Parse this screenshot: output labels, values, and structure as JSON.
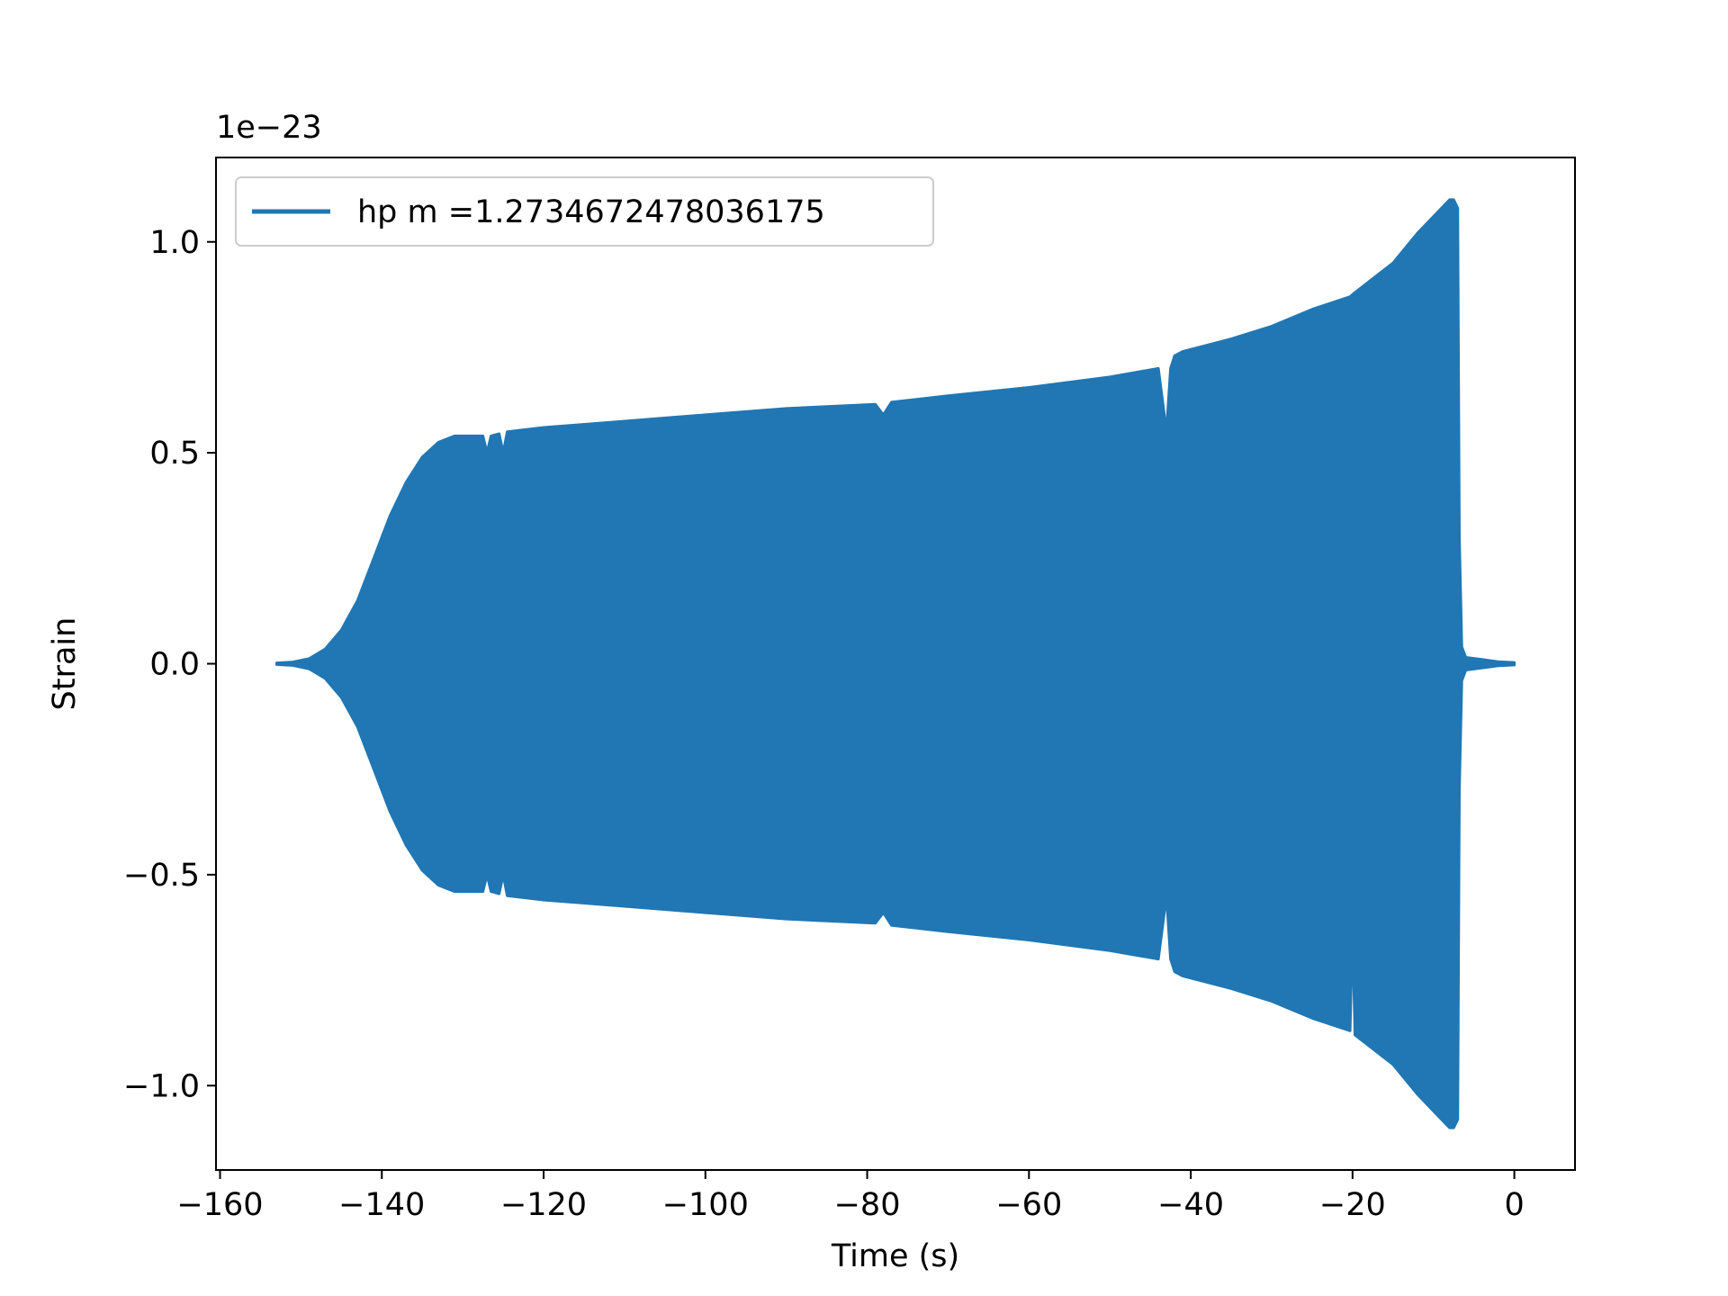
{
  "chart_data": {
    "type": "line",
    "title": "",
    "xlabel": "Time (s)",
    "ylabel": "Strain",
    "offset_text": "1e−23",
    "xlim": [
      -160.5,
      7.5
    ],
    "ylim": [
      -1.2,
      1.2
    ],
    "x_ticks": [
      -160,
      -140,
      -120,
      -100,
      -80,
      -60,
      -40,
      -20,
      0
    ],
    "x_tick_labels": [
      "−160",
      "−140",
      "−120",
      "−100",
      "−80",
      "−60",
      "−40",
      "−20",
      "0"
    ],
    "y_ticks": [
      1.0,
      0.5,
      0.0,
      -0.5,
      -1.0
    ],
    "y_tick_labels": [
      "1.0",
      "0.5",
      "0.0",
      "−0.5",
      "−1.0"
    ],
    "grid": false,
    "legend_position": "upper-left",
    "color": "#2077b4",
    "series": [
      {
        "name": "hp m =1.2734672478036175",
        "envelope": {
          "t": [
            -153,
            -151,
            -149,
            -147,
            -145,
            -143,
            -141,
            -139,
            -137,
            -135,
            -133,
            -131,
            -127.5,
            -127,
            -126.5,
            -125.5,
            -125,
            -124.5,
            -120,
            -110,
            -100,
            -90,
            -79,
            -78,
            -77,
            -70,
            -60,
            -50,
            -44,
            -43,
            -42.5,
            -42,
            -41,
            -35,
            -30,
            -25,
            -20.3,
            -20,
            -19.7,
            -15,
            -12,
            -10,
            -8,
            -7.5,
            -7,
            -6.8,
            -6.5,
            -6,
            -4,
            -2,
            0
          ],
          "upper": [
            0.002,
            0.004,
            0.012,
            0.035,
            0.08,
            0.15,
            0.25,
            0.35,
            0.43,
            0.49,
            0.525,
            0.54,
            0.54,
            0.5,
            0.54,
            0.545,
            0.5,
            0.55,
            0.56,
            0.575,
            0.59,
            0.605,
            0.615,
            0.59,
            0.62,
            0.635,
            0.655,
            0.68,
            0.7,
            0.55,
            0.7,
            0.73,
            0.74,
            0.77,
            0.8,
            0.84,
            0.87,
            0.875,
            0.88,
            0.95,
            1.02,
            1.06,
            1.1,
            1.1,
            1.08,
            0.3,
            0.04,
            0.015,
            0.01,
            0.005,
            0.003
          ],
          "lower": [
            -0.002,
            -0.004,
            -0.012,
            -0.035,
            -0.08,
            -0.15,
            -0.25,
            -0.35,
            -0.43,
            -0.49,
            -0.525,
            -0.54,
            -0.54,
            -0.5,
            -0.54,
            -0.545,
            -0.5,
            -0.55,
            -0.56,
            -0.575,
            -0.59,
            -0.605,
            -0.615,
            -0.59,
            -0.62,
            -0.635,
            -0.655,
            -0.68,
            -0.7,
            -0.55,
            -0.7,
            -0.73,
            -0.74,
            -0.77,
            -0.8,
            -0.84,
            -0.87,
            -0.62,
            -0.88,
            -0.95,
            -1.02,
            -1.06,
            -1.1,
            -1.1,
            -1.08,
            -0.3,
            -0.04,
            -0.015,
            -0.01,
            -0.005,
            -0.003
          ]
        }
      }
    ]
  }
}
